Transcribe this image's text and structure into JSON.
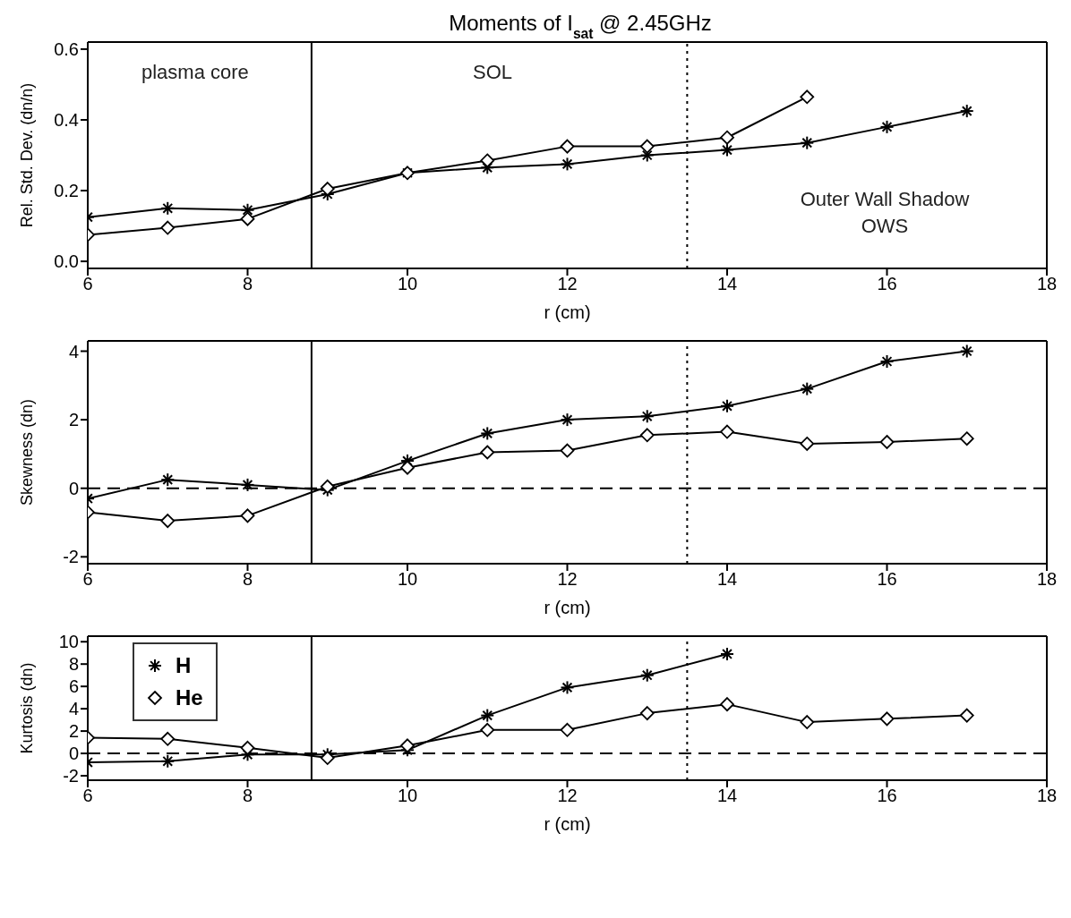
{
  "chart_data": [
    {
      "type": "line",
      "title": "Moments of I$_{sat}$ @ 2.45GHz",
      "xlabel": "r (cm)",
      "ylabel": "Rel. Std. Dev. (dn/n)",
      "x": [
        6,
        7,
        8,
        9,
        10,
        11,
        12,
        13,
        14,
        15,
        16,
        17
      ],
      "series": [
        {
          "color": "#000000",
          "marker": "cross",
          "values": [
            0.125,
            0.15,
            0.145,
            0.19,
            0.25,
            0.265,
            0.275,
            0.3,
            0.315,
            0.335,
            0.38,
            0.425
          ]
        },
        {
          "color": "#000000",
          "marker": "diamond",
          "values": [
            0.075,
            0.095,
            0.12,
            0.205,
            0.25,
            0.285,
            0.325,
            0.325,
            0.35,
            0.465,
            null,
            null
          ]
        }
      ],
      "xlim": [
        6,
        18
      ],
      "xticks": [
        6,
        8,
        10,
        12,
        14,
        16,
        18
      ],
      "ylim": [
        -0.02,
        0.62
      ],
      "yticks": [
        {
          "value": 0,
          "label": "0.0"
        },
        0.2,
        0.4,
        0.6
      ],
      "ref_lines": [
        {
          "axis": "x",
          "value": 8.8,
          "line_style": "solid"
        },
        {
          "axis": "x",
          "value": 13.5,
          "line_style": "dotted"
        }
      ],
      "annotations": [
        "plasma core",
        "SOL",
        "Outer Wall Shadow\nOWS"
      ],
      "grid": false,
      "legend": false,
      "line_style": "solid"
    },
    {
      "type": "line",
      "xlabel": "r (cm)",
      "ylabel": "Skewness (dn)",
      "x": [
        6,
        7,
        8,
        9,
        10,
        11,
        12,
        13,
        14,
        15,
        16,
        17
      ],
      "series": [
        {
          "color": "#000000",
          "marker": "cross",
          "values": [
            -0.3,
            0.25,
            0.1,
            -0.05,
            0.8,
            1.6,
            2.0,
            2.1,
            2.4,
            2.9,
            3.7,
            4.0
          ]
        },
        {
          "color": "#000000",
          "marker": "diamond",
          "values": [
            -0.7,
            -0.95,
            -0.8,
            0.05,
            0.6,
            1.05,
            1.1,
            1.55,
            1.65,
            1.3,
            1.35,
            1.45
          ]
        }
      ],
      "xlim": [
        6,
        18
      ],
      "xticks": [
        6,
        8,
        10,
        12,
        14,
        16,
        18
      ],
      "ylim": [
        -2.2,
        4.3
      ],
      "yticks": [
        -2,
        0,
        2,
        4
      ],
      "ref_lines": [
        {
          "axis": "x",
          "value": 8.8,
          "line_style": "solid"
        },
        {
          "axis": "x",
          "value": 13.5,
          "line_style": "dotted"
        },
        {
          "axis": "y",
          "value": 0,
          "line_style": "dashed"
        }
      ],
      "grid": false,
      "legend": false,
      "line_style": "solid"
    },
    {
      "type": "line",
      "xlabel": "r (cm)",
      "ylabel": "Kurtosis (dn)",
      "x": [
        6,
        7,
        8,
        9,
        10,
        11,
        12,
        13,
        14,
        15,
        16,
        17
      ],
      "series": [
        {
          "name": "H",
          "color": "#000000",
          "marker": "cross",
          "values": [
            -0.8,
            -0.7,
            -0.1,
            -0.1,
            0.3,
            3.4,
            5.9,
            7.0,
            8.9,
            null,
            null,
            null
          ]
        },
        {
          "name": "He",
          "color": "#000000",
          "marker": "diamond",
          "values": [
            1.4,
            1.3,
            0.5,
            -0.4,
            0.7,
            2.1,
            2.1,
            3.6,
            4.4,
            2.8,
            3.1,
            3.4
          ]
        }
      ],
      "xlim": [
        6,
        18
      ],
      "xticks": [
        6,
        8,
        10,
        12,
        14,
        16,
        18
      ],
      "ylim": [
        -2.4,
        10.5
      ],
      "yticks": [
        -2,
        0,
        2,
        4,
        6,
        8,
        10
      ],
      "ref_lines": [
        {
          "axis": "x",
          "value": 8.8,
          "line_style": "solid"
        },
        {
          "axis": "x",
          "value": 13.5,
          "line_style": "dotted"
        },
        {
          "axis": "y",
          "value": 0,
          "line_style": "dashed"
        }
      ],
      "grid": false,
      "legend": "top left",
      "line_style": "solid"
    }
  ]
}
